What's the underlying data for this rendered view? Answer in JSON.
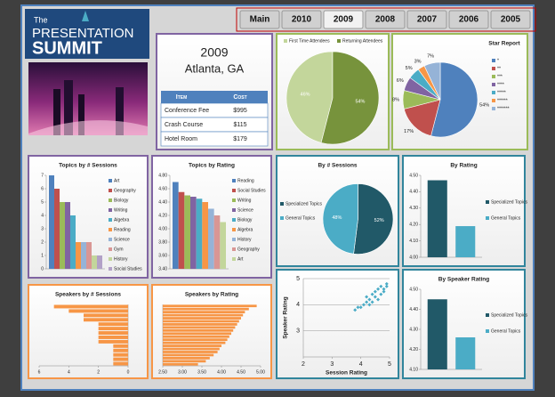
{
  "logo": {
    "small": "The",
    "line1": "PRESENTATION",
    "line2": "SUMMIT"
  },
  "nav": {
    "items": [
      "Main",
      "2010",
      "2009",
      "2008",
      "2007",
      "2006",
      "2005"
    ],
    "selected": 2
  },
  "header": {
    "year": "2009",
    "location": "Atlanta, GA"
  },
  "table": {
    "header": [
      "Item",
      "Cost"
    ],
    "rows": [
      [
        "Conference Fee",
        "$995"
      ],
      [
        "Crash Course",
        "$115"
      ],
      [
        "Hotel Room",
        "$179"
      ]
    ]
  },
  "chart_data": [
    {
      "type": "pie",
      "categories": [
        "First Time Attendees",
        "Returning Attendees"
      ],
      "values": [
        46,
        54
      ],
      "value_labels": [
        "46%",
        "54%"
      ],
      "colors": [
        "#c3d69b",
        "#77933c"
      ],
      "legend": "top"
    },
    {
      "type": "pie",
      "title": "Star Report",
      "categories": [
        "*",
        "**",
        "***",
        "****",
        "*****",
        "******",
        "*******"
      ],
      "values": [
        54,
        17,
        8,
        6,
        5,
        3,
        7
      ],
      "value_labels": [
        "54%",
        "17%",
        "8%",
        "6%",
        "5%",
        "3%",
        "7%"
      ],
      "colors": [
        "#4f81bd",
        "#c0504d",
        "#9bbb59",
        "#8064a2",
        "#4bacc6",
        "#f79646",
        "#95b3d7"
      ],
      "legend": "right"
    },
    {
      "type": "bar",
      "title": "Topics by # Sessions",
      "categories": [
        "Art",
        "Geography",
        "Biology",
        "Writing",
        "Algebra",
        "Reading",
        "Science",
        "Gym",
        "History",
        "Social Studies"
      ],
      "values": [
        7,
        6,
        5,
        5,
        4,
        2,
        2,
        2,
        1,
        1
      ],
      "colors": [
        "#4f81bd",
        "#c0504d",
        "#9bbb59",
        "#8064a2",
        "#4bacc6",
        "#f79646",
        "#95b3d7",
        "#d99694",
        "#c3d69b",
        "#b2a1c7"
      ],
      "ylim": [
        0,
        7
      ],
      "yticks": [
        0,
        1,
        2,
        3,
        4,
        5,
        6,
        7
      ],
      "legend": "right"
    },
    {
      "type": "bar",
      "title": "Topics by Rating",
      "categories": [
        "Reading",
        "Social Studies",
        "Writing",
        "Science",
        "Biology",
        "Algebra",
        "History",
        "Geography",
        "Art"
      ],
      "values": [
        4.7,
        4.55,
        4.5,
        4.48,
        4.45,
        4.4,
        4.3,
        4.2,
        4.1
      ],
      "colors": [
        "#4f81bd",
        "#c0504d",
        "#9bbb59",
        "#8064a2",
        "#4bacc6",
        "#f79646",
        "#95b3d7",
        "#d99694",
        "#c3d69b"
      ],
      "ylim": [
        3.4,
        4.8
      ],
      "yticks": [
        {
          "value": 3.4,
          "label": "3.40"
        },
        {
          "value": 3.6,
          "label": "3.60"
        },
        {
          "value": 3.8,
          "label": "3.80"
        },
        {
          "value": 4,
          "label": "4.00"
        },
        {
          "value": 4.2,
          "label": "4.20"
        },
        {
          "value": 4.4,
          "label": "4.40"
        },
        {
          "value": 4.6,
          "label": "4.60"
        },
        {
          "value": 4.8,
          "label": "4.80"
        }
      ],
      "legend": "right"
    },
    {
      "type": "hbar",
      "title": "Speakers by # Sessions",
      "values": [
        5,
        4,
        3,
        3,
        2,
        2,
        2,
        2,
        2,
        1,
        1,
        1,
        1,
        1
      ],
      "color": "#f79646",
      "xlim": [
        6,
        0
      ],
      "xticks": [
        6,
        4,
        2,
        0
      ]
    },
    {
      "type": "hbar",
      "title": "Speakers by Rating",
      "values": [
        4.9,
        4.7,
        4.6,
        4.55,
        4.5,
        4.45,
        4.4,
        4.35,
        4.3,
        4.25,
        4.2,
        4.15,
        4.1,
        4.0,
        3.95,
        3.9,
        3.8,
        3.7,
        3.6,
        3.4
      ],
      "color": "#f79646",
      "xlim": [
        2.5,
        5
      ],
      "xticks": [
        {
          "value": 2.5,
          "label": "2.50"
        },
        {
          "value": 3,
          "label": "3.00"
        },
        {
          "value": 3.5,
          "label": "3.50"
        },
        {
          "value": 4,
          "label": "4.00"
        },
        {
          "value": 4.5,
          "label": "4.50"
        },
        {
          "value": 5,
          "label": "5.00"
        }
      ]
    },
    {
      "type": "pie",
      "title": "By # Sessions",
      "categories": [
        "Specialized Topics",
        "General Topics"
      ],
      "values": [
        52,
        48
      ],
      "value_labels": [
        "52%",
        "48%"
      ],
      "colors": [
        "#215968",
        "#4bacc6"
      ],
      "legend": "left"
    },
    {
      "type": "bar",
      "title": "By Rating",
      "categories": [
        "Specialized Topics",
        "General Topics"
      ],
      "values": [
        4.47,
        4.19
      ],
      "colors": [
        "#215968",
        "#4bacc6"
      ],
      "ylim": [
        4,
        4.5
      ],
      "yticks": [
        {
          "value": 4,
          "label": "4.00"
        },
        {
          "value": 4.1,
          "label": "4.10"
        },
        {
          "value": 4.2,
          "label": "4.20"
        },
        {
          "value": 4.3,
          "label": "4.30"
        },
        {
          "value": 4.4,
          "label": "4.40"
        },
        {
          "value": 4.5,
          "label": "4.50"
        }
      ],
      "legend": "right"
    },
    {
      "type": "scatter",
      "x_label": "Session Rating",
      "y_label": "Speaker Rating",
      "x": [
        3.8,
        3.9,
        4.0,
        4.1,
        4.2,
        4.2,
        4.3,
        4.3,
        4.4,
        4.4,
        4.5,
        4.5,
        4.6,
        4.6,
        4.7,
        4.7,
        4.8,
        4.8,
        4.9,
        4.9
      ],
      "y": [
        3.8,
        3.9,
        3.9,
        4.0,
        4.1,
        4.3,
        4.0,
        4.2,
        4.4,
        4.1,
        4.3,
        4.5,
        4.2,
        4.6,
        4.4,
        4.7,
        4.5,
        4.6,
        4.7,
        4.8
      ],
      "color": "#4bacc6",
      "xlim": [
        2,
        5
      ],
      "xticks": [
        2,
        3,
        4,
        5
      ],
      "ylim": [
        2,
        5
      ],
      "yticks": [
        3,
        4,
        5
      ],
      "grid": true
    },
    {
      "type": "bar",
      "title": "By Speaker Rating",
      "categories": [
        "Specialized Topics",
        "General Topics"
      ],
      "values": [
        4.45,
        4.26
      ],
      "colors": [
        "#215968",
        "#4bacc6"
      ],
      "ylim": [
        4.1,
        4.5
      ],
      "yticks": [
        {
          "value": 4.1,
          "label": "4.10"
        },
        {
          "value": 4.2,
          "label": "4.20"
        },
        {
          "value": 4.3,
          "label": "4.30"
        },
        {
          "value": 4.4,
          "label": "4.40"
        },
        {
          "value": 4.5,
          "label": "4.50"
        }
      ],
      "legend": "right"
    }
  ]
}
